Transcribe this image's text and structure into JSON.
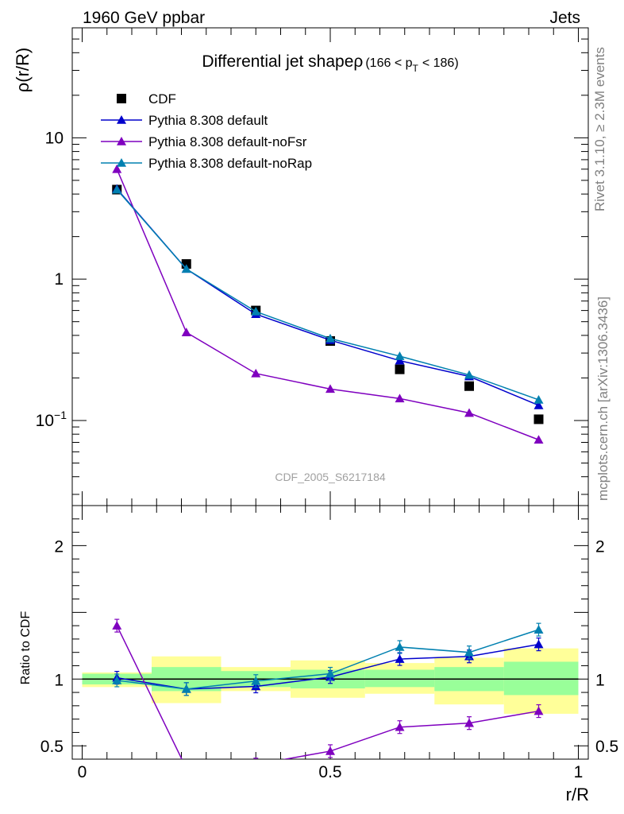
{
  "header": {
    "energy_label": "1960 GeV ppbar",
    "category_label": "Jets"
  },
  "side_labels": {
    "rivet": "Rivet 3.1.10, ≥ 2.3M events",
    "site": "mcplots.cern.ch [arXiv:1306.3436]"
  },
  "chart_data": [
    {
      "type": "scatter",
      "title": "Differential jet shapeρ (166 < p_T < 186)",
      "title_main": "Differential jet shapeρ",
      "title_range_open": "(166 < p",
      "title_range_sub": "T",
      "title_range_close": "< 186)",
      "watermark": "CDF_2005_S6217184",
      "ylabel": "ρ(r/R)",
      "xlabel": "r/R",
      "yscale": "log",
      "xlim": [
        -0.02,
        1.02
      ],
      "ylim": [
        0.025,
        60
      ],
      "yticks": [
        {
          "value": 0.1,
          "base": "10",
          "exp": "−1"
        },
        {
          "value": 1,
          "base": "1",
          "exp": ""
        },
        {
          "value": 10,
          "base": "10",
          "exp": ""
        }
      ],
      "legend_position": "top-left",
      "x": [
        0.07,
        0.21,
        0.35,
        0.5,
        0.64,
        0.78,
        0.92
      ],
      "series": [
        {
          "name": "CDF",
          "marker": "square",
          "color": "#000000",
          "values": [
            4.3,
            1.28,
            0.6,
            0.365,
            0.23,
            0.175,
            0.102
          ]
        },
        {
          "name": "Pythia 8.308 default",
          "marker": "triangle",
          "color": "#0000cc",
          "values": [
            4.35,
            1.18,
            0.565,
            0.37,
            0.265,
            0.205,
            0.128
          ]
        },
        {
          "name": "Pythia 8.308 default-noFsr",
          "marker": "triangle",
          "color": "#7f00bf",
          "values": [
            6.0,
            0.42,
            0.215,
            0.167,
            0.143,
            0.113,
            0.073
          ]
        },
        {
          "name": "Pythia 8.308 default-noRap",
          "marker": "triangle",
          "color": "#0080b0",
          "values": [
            4.3,
            1.18,
            0.59,
            0.38,
            0.285,
            0.21,
            0.14
          ]
        }
      ]
    },
    {
      "type": "line",
      "ylabel": "Ratio to CDF",
      "xlabel": "r/R",
      "xlim": [
        -0.02,
        1.02
      ],
      "ylim": [
        0.4,
        2.3
      ],
      "xticks": [
        {
          "value": 0,
          "label": "0"
        },
        {
          "value": 0.5,
          "label": "0.5"
        },
        {
          "value": 1,
          "label": "1"
        }
      ],
      "yticks": [
        {
          "value": 0.5,
          "label": "0.5"
        },
        {
          "value": 1,
          "label": "1"
        },
        {
          "value": 2,
          "label": "2"
        }
      ],
      "x": [
        0.07,
        0.21,
        0.35,
        0.5,
        0.64,
        0.78,
        0.92
      ],
      "uncertainty_bands": {
        "bin_edges": [
          0,
          0.14,
          0.28,
          0.42,
          0.57,
          0.71,
          0.85,
          1.0
        ],
        "inner": [
          [
            0.96,
            1.04
          ],
          [
            0.91,
            1.09
          ],
          [
            0.94,
            1.06
          ],
          [
            0.93,
            1.07
          ],
          [
            0.94,
            1.07
          ],
          [
            0.91,
            1.09
          ],
          [
            0.88,
            1.13
          ]
        ],
        "outer": [
          [
            0.94,
            1.05
          ],
          [
            0.82,
            1.17
          ],
          [
            0.91,
            1.09
          ],
          [
            0.86,
            1.14
          ],
          [
            0.89,
            1.12
          ],
          [
            0.81,
            1.16
          ],
          [
            0.74,
            1.23
          ]
        ],
        "inner_color": "#99ff99",
        "outer_color": "#ffff99"
      },
      "series": [
        {
          "name": "Pythia 8.308 default",
          "color": "#0000cc",
          "values": [
            1.01,
            0.925,
            0.945,
            1.015,
            1.15,
            1.17,
            1.26
          ]
        },
        {
          "name": "Pythia 8.308 default-noFsr",
          "color": "#7f00bf",
          "values": [
            1.4,
            0.33,
            0.36,
            0.46,
            0.64,
            0.67,
            0.76
          ]
        },
        {
          "name": "Pythia 8.308 default-noRap",
          "color": "#0080b0",
          "values": [
            0.99,
            0.925,
            0.985,
            1.04,
            1.24,
            1.2,
            1.37
          ]
        }
      ]
    }
  ]
}
